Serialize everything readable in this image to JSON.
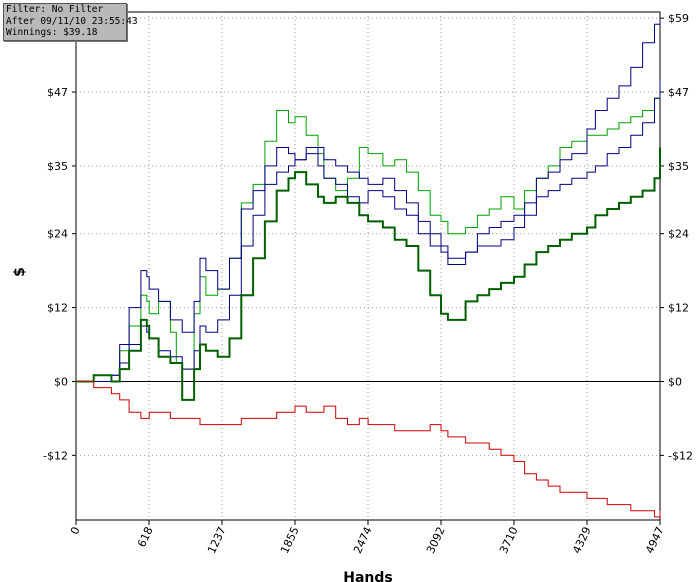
{
  "info": {
    "filter": "Filter: No Filter",
    "after": "After 09/11/10 23:55:43",
    "winnings": "Winnings: $39.18"
  },
  "chart_data": {
    "type": "line",
    "xlabel": "Hands",
    "ylabel": "$",
    "xlim": [
      0,
      4947
    ],
    "ylim": [
      -22.5,
      60
    ],
    "grid": true,
    "x_ticks": [
      "0",
      "618",
      "1237",
      "1855",
      "2474",
      "3092",
      "3710",
      "4329",
      "4947"
    ],
    "y_ticks": [
      {
        "value": 59,
        "label": "$59"
      },
      {
        "value": 47,
        "label": "$47"
      },
      {
        "value": 35,
        "label": "$35"
      },
      {
        "value": 24,
        "label": "$24"
      },
      {
        "value": 12,
        "label": "$12"
      },
      {
        "value": 0,
        "label": "$0"
      },
      {
        "value": -12,
        "label": "-$12"
      }
    ],
    "series": [
      {
        "color": "#00a000",
        "width": 1,
        "x": [
          0,
          150,
          300,
          370,
          450,
          550,
          600,
          620,
          700,
          800,
          850,
          900,
          1000,
          1050,
          1100,
          1200,
          1300,
          1400,
          1500,
          1600,
          1700,
          1800,
          1855,
          1950,
          2050,
          2100,
          2200,
          2300,
          2400,
          2474,
          2600,
          2700,
          2800,
          2900,
          3000,
          3092,
          3150,
          3300,
          3400,
          3500,
          3600,
          3710,
          3800,
          3900,
          4000,
          4100,
          4200,
          4329,
          4400,
          4500,
          4600,
          4700,
          4800,
          4900,
          4947
        ],
        "y": [
          0,
          1,
          0,
          5,
          9,
          14,
          13,
          11,
          13,
          8,
          3,
          2,
          11,
          17,
          14,
          15,
          20,
          29,
          32,
          39,
          44,
          42,
          43,
          40,
          37,
          33,
          31,
          33,
          38,
          37,
          35,
          36,
          34,
          31,
          27,
          26,
          24,
          25,
          27,
          28,
          30,
          28,
          31,
          33,
          35,
          38,
          39,
          40,
          40,
          41,
          42,
          43,
          44,
          46,
          47
        ]
      },
      {
        "color": "#000080",
        "width": 1,
        "x": [
          0,
          150,
          300,
          370,
          450,
          550,
          600,
          620,
          700,
          800,
          900,
          1000,
          1050,
          1100,
          1200,
          1300,
          1400,
          1500,
          1600,
          1700,
          1800,
          1855,
          1950,
          2050,
          2100,
          2200,
          2300,
          2400,
          2474,
          2600,
          2700,
          2800,
          2900,
          3000,
          3092,
          3150,
          3300,
          3400,
          3500,
          3600,
          3710,
          3800,
          3900,
          4000,
          4100,
          4200,
          4329,
          4400,
          4500,
          4600,
          4700,
          4800,
          4900,
          4947
        ],
        "y": [
          0,
          1,
          1,
          6,
          12,
          18,
          17,
          15,
          13,
          10,
          8,
          13,
          20,
          18,
          15,
          20,
          28,
          31,
          35,
          38,
          37,
          36,
          38,
          35,
          33,
          32,
          30,
          29,
          31,
          30,
          28,
          27,
          24,
          22,
          21,
          20,
          21,
          24,
          25,
          26,
          27,
          29,
          30,
          31,
          32,
          33,
          34,
          35,
          37,
          38,
          40,
          42,
          46,
          49
        ]
      },
      {
        "color": "#000080",
        "width": 1,
        "x": [
          0,
          150,
          300,
          370,
          450,
          550,
          600,
          620,
          700,
          800,
          900,
          1000,
          1050,
          1100,
          1200,
          1300,
          1400,
          1500,
          1600,
          1700,
          1800,
          1855,
          1950,
          2050,
          2100,
          2200,
          2300,
          2400,
          2474,
          2600,
          2700,
          2800,
          2900,
          3000,
          3092,
          3150,
          3300,
          3400,
          3500,
          3600,
          3710,
          3800,
          3900,
          4000,
          4100,
          4200,
          4329,
          4400,
          4500,
          4600,
          4700,
          4800,
          4900,
          4947
        ],
        "y": [
          0,
          0,
          1,
          3,
          6,
          9,
          8,
          7,
          5,
          4,
          2,
          5,
          9,
          8,
          10,
          14,
          22,
          27,
          32,
          34,
          35,
          36,
          37,
          38,
          36,
          35,
          34,
          33,
          32,
          33,
          31,
          29,
          26,
          24,
          22,
          19,
          21,
          22,
          22,
          23,
          25,
          27,
          33,
          34,
          36,
          37,
          41,
          44,
          46,
          48,
          51,
          55,
          58,
          59
        ]
      },
      {
        "color": "#006000",
        "width": 2,
        "x": [
          0,
          150,
          300,
          370,
          450,
          550,
          600,
          620,
          700,
          800,
          900,
          1000,
          1050,
          1100,
          1200,
          1300,
          1400,
          1500,
          1600,
          1700,
          1800,
          1855,
          1950,
          2050,
          2100,
          2200,
          2300,
          2400,
          2474,
          2600,
          2700,
          2800,
          2900,
          3000,
          3092,
          3150,
          3300,
          3400,
          3500,
          3600,
          3710,
          3800,
          3900,
          4000,
          4100,
          4200,
          4329,
          4400,
          4500,
          4600,
          4700,
          4800,
          4900,
          4947
        ],
        "y": [
          0,
          1,
          0,
          2,
          5,
          10,
          9,
          7,
          4,
          3,
          -3,
          2,
          6,
          5,
          4,
          7,
          14,
          20,
          26,
          31,
          33,
          34,
          32,
          30,
          29,
          30,
          29,
          27,
          26,
          25,
          23,
          22,
          18,
          14,
          11,
          10,
          13,
          14,
          15,
          16,
          17,
          19,
          21,
          22,
          23,
          24,
          25,
          27,
          28,
          29,
          30,
          31,
          33,
          38
        ]
      },
      {
        "color": "#cc0000",
        "width": 1,
        "x": [
          0,
          150,
          300,
          370,
          450,
          550,
          600,
          620,
          700,
          800,
          900,
          1000,
          1050,
          1100,
          1200,
          1300,
          1400,
          1500,
          1600,
          1700,
          1800,
          1855,
          1950,
          2050,
          2100,
          2200,
          2300,
          2400,
          2474,
          2600,
          2700,
          2800,
          2900,
          3000,
          3092,
          3150,
          3300,
          3400,
          3500,
          3600,
          3710,
          3800,
          3900,
          4000,
          4100,
          4200,
          4329,
          4400,
          4500,
          4600,
          4700,
          4800,
          4900,
          4947
        ],
        "y": [
          0,
          -1,
          -2,
          -3,
          -5,
          -6,
          -6,
          -5,
          -5,
          -6,
          -6,
          -6,
          -7,
          -7,
          -7,
          -7,
          -6,
          -6,
          -6,
          -5,
          -5,
          -4,
          -5,
          -5,
          -4,
          -6,
          -7,
          -6,
          -7,
          -7,
          -8,
          -8,
          -8,
          -7,
          -8,
          -9,
          -10,
          -10,
          -11,
          -12,
          -13,
          -15,
          -16,
          -17,
          -18,
          -18,
          -19,
          -19,
          -20,
          -20,
          -21,
          -21,
          -22,
          -21
        ]
      }
    ]
  }
}
